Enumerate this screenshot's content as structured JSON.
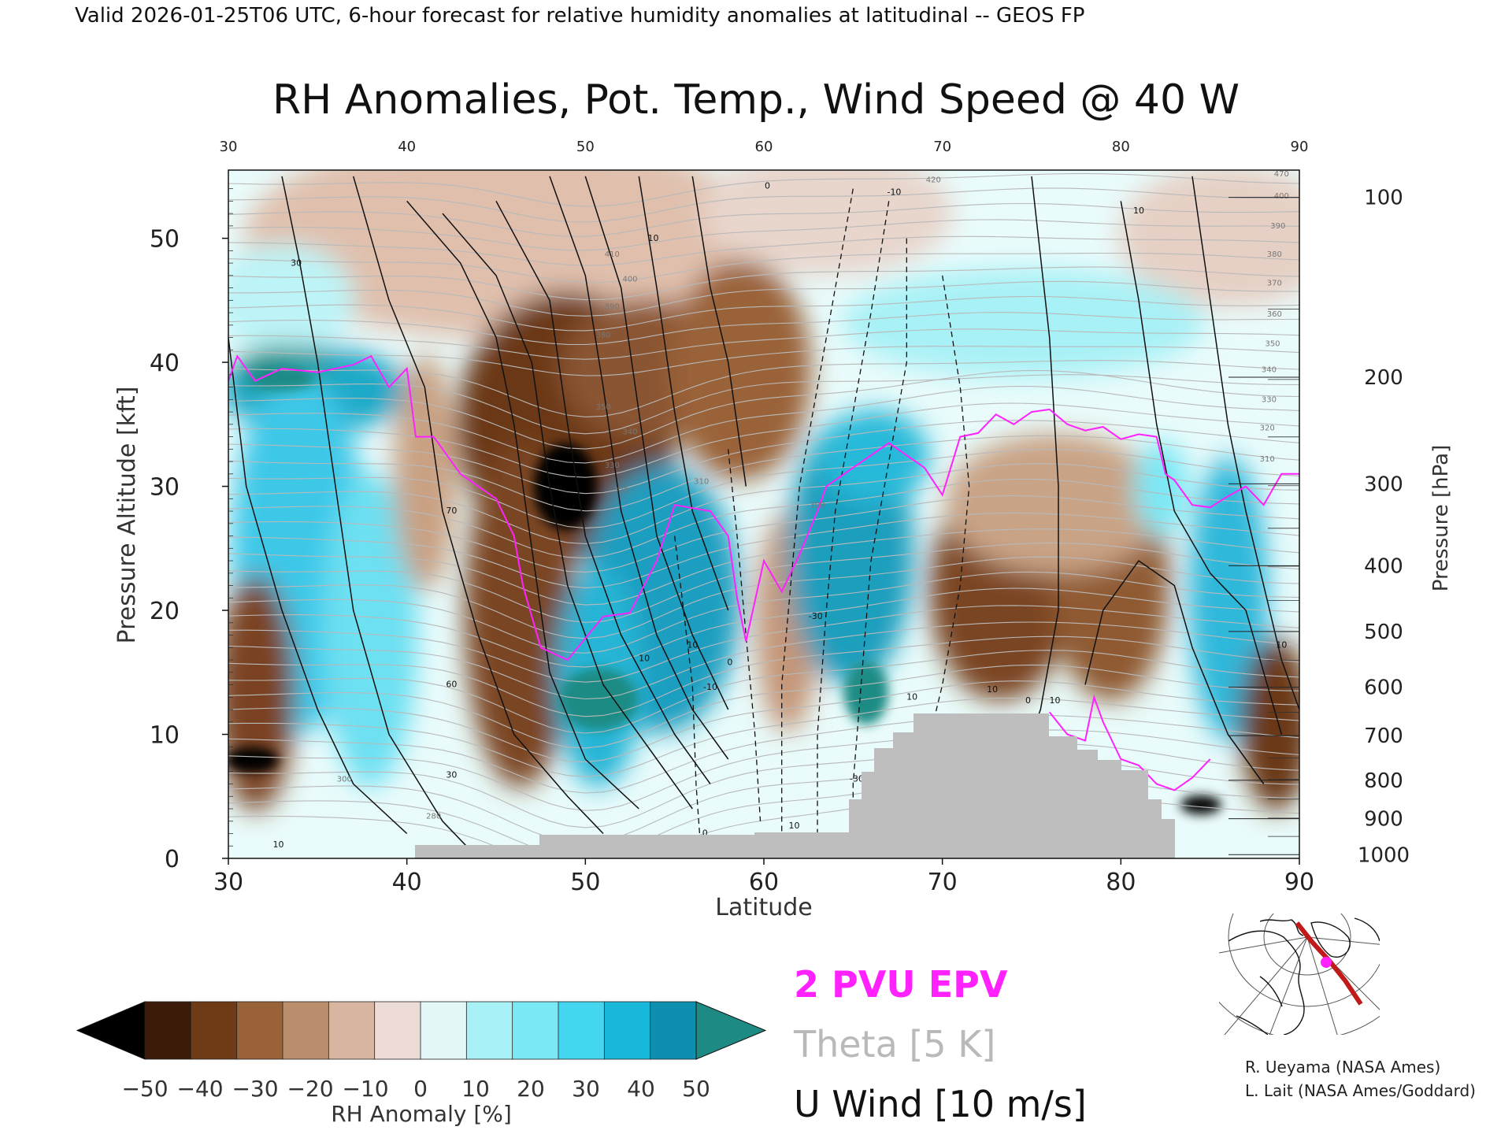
{
  "header": {
    "valid_line": "Valid 2026-01-25T06 UTC, 6-hour forecast for relative humidity anomalies at latitudinal -- GEOS FP"
  },
  "chart_data": {
    "type": "heatmap",
    "title": "RH Anomalies, Pot. Temp., Wind Speed @ 40 W",
    "xlabel": "Latitude",
    "ylabel_left": "Pressure Altitude [kft]",
    "ylabel_right": "Pressure [hPa]",
    "xlim": [
      30,
      90
    ],
    "ylim_kft": [
      0,
      55.5
    ],
    "x_ticks": [
      "30",
      "40",
      "50",
      "60",
      "70",
      "80",
      "90"
    ],
    "top_x_ticks": [
      "30",
      "40",
      "50",
      "60",
      "70",
      "80",
      "90"
    ],
    "y_ticks_kft": [
      "0",
      "10",
      "20",
      "30",
      "40",
      "50"
    ],
    "right_ticks_hpa": [
      {
        "label": "100",
        "kft": 53.3
      },
      {
        "label": "200",
        "kft": 38.8
      },
      {
        "label": "300",
        "kft": 30.2
      },
      {
        "label": "400",
        "kft": 23.6
      },
      {
        "label": "500",
        "kft": 18.3
      },
      {
        "label": "600",
        "kft": 13.8
      },
      {
        "label": "700",
        "kft": 9.9
      },
      {
        "label": "800",
        "kft": 6.3
      },
      {
        "label": "900",
        "kft": 3.2
      },
      {
        "label": "1000",
        "kft": 0.3
      }
    ],
    "theta_contour_labels": [
      {
        "text": "420",
        "lat": 69.5,
        "kft": 54.5
      },
      {
        "text": "410",
        "lat": 51.5,
        "kft": 48.5
      },
      {
        "text": "400",
        "lat": 52.5,
        "kft": 46.5
      },
      {
        "text": "390",
        "lat": 51.5,
        "kft": 44.3
      },
      {
        "text": "380",
        "lat": 51.0,
        "kft": 42.0
      },
      {
        "text": "350",
        "lat": 51.0,
        "kft": 36.2
      },
      {
        "text": "340",
        "lat": 52.5,
        "kft": 34.2
      },
      {
        "text": "330",
        "lat": 51.5,
        "kft": 31.5
      },
      {
        "text": "320",
        "lat": 52.0,
        "kft": 29.5
      },
      {
        "text": "310",
        "lat": 56.5,
        "kft": 30.2
      },
      {
        "text": "300",
        "lat": 63.0,
        "kft": 28.3
      },
      {
        "text": "300",
        "lat": 36.5,
        "kft": 6.2
      },
      {
        "text": "280",
        "lat": 41.5,
        "kft": 3.2
      },
      {
        "text": "470",
        "lat": 89.0,
        "kft": 55.0
      },
      {
        "text": "400",
        "lat": 89.0,
        "kft": 53.2
      },
      {
        "text": "390",
        "lat": 88.8,
        "kft": 50.8
      },
      {
        "text": "380",
        "lat": 88.6,
        "kft": 48.5
      },
      {
        "text": "370",
        "lat": 88.6,
        "kft": 46.2
      },
      {
        "text": "360",
        "lat": 88.6,
        "kft": 43.7
      },
      {
        "text": "350",
        "lat": 88.5,
        "kft": 41.3
      },
      {
        "text": "340",
        "lat": 88.3,
        "kft": 39.2
      },
      {
        "text": "330",
        "lat": 88.3,
        "kft": 36.8
      },
      {
        "text": "320",
        "lat": 88.2,
        "kft": 34.5
      },
      {
        "text": "310",
        "lat": 88.2,
        "kft": 32.0
      }
    ],
    "wind_contour_labels": [
      {
        "text": "30",
        "lat": 33.8,
        "kft": 47.8
      },
      {
        "text": "70",
        "lat": 42.5,
        "kft": 27.8
      },
      {
        "text": "60",
        "lat": 42.5,
        "kft": 13.8
      },
      {
        "text": "30",
        "lat": 42.5,
        "kft": 6.5
      },
      {
        "text": "10",
        "lat": 32.8,
        "kft": 0.9
      },
      {
        "text": "10",
        "lat": 56.0,
        "kft": 17.0
      },
      {
        "text": "10",
        "lat": 53.3,
        "kft": 15.9
      },
      {
        "text": "0",
        "lat": 58.1,
        "kft": 15.6
      },
      {
        "text": "-10",
        "lat": 57.0,
        "kft": 13.6
      },
      {
        "text": "0",
        "lat": 56.7,
        "kft": 1.8
      },
      {
        "text": "10",
        "lat": 61.7,
        "kft": 2.4
      },
      {
        "text": "-30",
        "lat": 62.9,
        "kft": 19.3
      },
      {
        "text": "-30",
        "lat": 65.2,
        "kft": 6.2
      },
      {
        "text": "10",
        "lat": 68.3,
        "kft": 12.8
      },
      {
        "text": "10",
        "lat": 72.8,
        "kft": 13.4
      },
      {
        "text": "0",
        "lat": 74.8,
        "kft": 12.5
      },
      {
        "text": "10",
        "lat": 76.3,
        "kft": 12.5
      },
      {
        "text": "10",
        "lat": 81.0,
        "kft": 52.0
      },
      {
        "text": "10",
        "lat": 53.8,
        "kft": 49.8
      },
      {
        "text": "0",
        "lat": 60.2,
        "kft": 54.0
      },
      {
        "text": "-10",
        "lat": 67.3,
        "kft": 53.5
      },
      {
        "text": "10",
        "lat": 89.0,
        "kft": 17.0
      }
    ],
    "legend_entries": [
      {
        "label": "2 PVU EPV",
        "color": "#ff22ff"
      },
      {
        "label": "Theta [5 K]",
        "color": "#b9b9b9"
      },
      {
        "label": "U Wind [10 m/s]",
        "color": "#111111"
      }
    ],
    "colorbar": {
      "label": "RH Anomaly [%]",
      "tick_labels": [
        "-50",
        "-40",
        "-30",
        "-20",
        "-10",
        "0",
        "10",
        "20",
        "30",
        "40",
        "50"
      ],
      "colors": [
        "#000000",
        "#3b1a07",
        "#6e3b16",
        "#9a6238",
        "#bb8f6d",
        "#d8b5a0",
        "#ecdcd5",
        "#e4f7f7",
        "#a8f1f6",
        "#7be8f5",
        "#45d6ef",
        "#17b8d9",
        "#0d90b0",
        "#1d8b84"
      ]
    }
  },
  "inset_map": {
    "marker_color": "#ff22ff",
    "track_color": "#c01a1a"
  },
  "credits": {
    "line1": "R. Ueyama (NASA Ames)",
    "line2": "L. Lait (NASA Ames/Goddard)"
  }
}
